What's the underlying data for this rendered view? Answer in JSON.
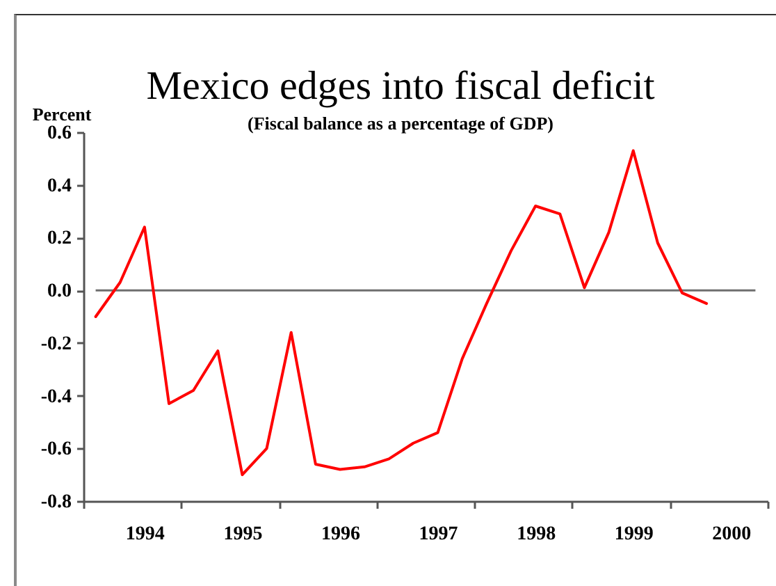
{
  "chart_data": {
    "type": "line",
    "title": "Mexico edges into fiscal deficit",
    "subtitle": "(Fiscal balance as a percentage of GDP)",
    "ylabel": "Percent",
    "categories": [
      null,
      null,
      "1994",
      null,
      null,
      null,
      "1995",
      null,
      null,
      null,
      "1996",
      null,
      null,
      null,
      "1997",
      null,
      null,
      null,
      "1998",
      null,
      null,
      null,
      "1999",
      null,
      null,
      null,
      "2000",
      null
    ],
    "series": [
      {
        "color": "#ff0000",
        "values": [
          -0.1,
          0.03,
          0.24,
          -0.43,
          -0.38,
          -0.23,
          -0.7,
          -0.6,
          -0.16,
          -0.66,
          -0.68,
          -0.67,
          -0.64,
          -0.58,
          -0.54,
          -0.26,
          -0.05,
          0.15,
          0.32,
          0.29,
          0.01,
          0.22,
          0.53,
          0.18,
          -0.01,
          -0.05,
          null,
          null
        ]
      }
    ],
    "ylim": [
      -0.8,
      0.6
    ],
    "yticks": [
      -0.8,
      -0.6,
      -0.4,
      -0.2,
      {
        "value": 0,
        "label": "0.0"
      },
      0.2,
      0.4,
      0.6
    ],
    "ref_lines": [
      {
        "axis": "y",
        "value": 0,
        "color": "#6e6e6e"
      }
    ],
    "line_style": "solid"
  }
}
